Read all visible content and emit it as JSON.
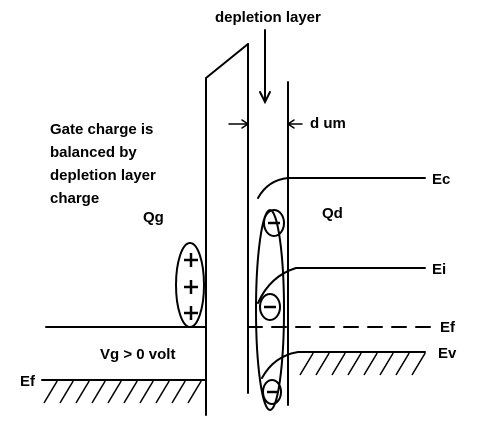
{
  "labels": {
    "depletion_layer": "depletion layer",
    "d_um": "d um",
    "gate_note_1": "Gate charge is",
    "gate_note_2": "balanced by",
    "gate_note_3": "depletion layer",
    "gate_note_4": "charge",
    "qg": "Qg",
    "qd": "Qd",
    "ec": "Ec",
    "ei": "Ei",
    "ef_right": "Ef",
    "ev": "Ev",
    "vg": "Vg > 0 volt",
    "ef_left": "Ef"
  },
  "gate_charges": [
    "+",
    "+",
    "+"
  ],
  "depletion_charges": [
    "−",
    "−",
    "−"
  ],
  "colors": {
    "ink": "#000000",
    "background": "#ffffff"
  }
}
